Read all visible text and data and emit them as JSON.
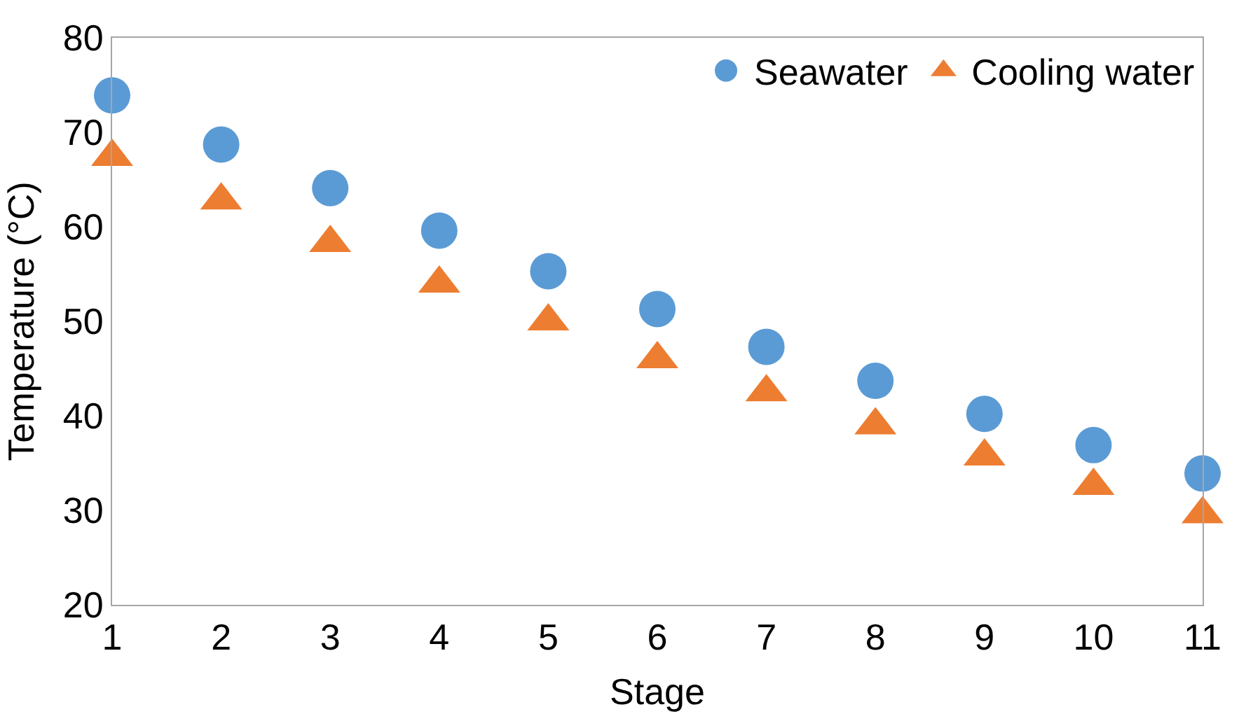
{
  "chart_data": {
    "type": "scatter",
    "xlabel": "Stage",
    "ylabel": "Temperature (°C)",
    "x": [
      1,
      2,
      3,
      4,
      5,
      6,
      7,
      8,
      9,
      10,
      11
    ],
    "xlim": [
      1,
      11
    ],
    "xticks": [
      1,
      2,
      3,
      4,
      5,
      6,
      7,
      8,
      9,
      10,
      11
    ],
    "ylim": [
      20,
      80
    ],
    "yticks": [
      20,
      30,
      40,
      50,
      60,
      70,
      80
    ],
    "legend": "top right",
    "series": [
      {
        "name": "Seawater",
        "color": "#5b9bd5",
        "marker": "circle",
        "values": [
          73.9,
          68.7,
          64.1,
          59.6,
          55.3,
          51.3,
          47.3,
          43.7,
          40.2,
          36.9,
          33.9
        ]
      },
      {
        "name": "Cooling water",
        "color": "#ed7d31",
        "marker": "triangle",
        "values": [
          67.4,
          62.8,
          58.3,
          54.0,
          50.0,
          46.0,
          42.5,
          39.0,
          35.7,
          32.6,
          29.6
        ]
      }
    ]
  }
}
